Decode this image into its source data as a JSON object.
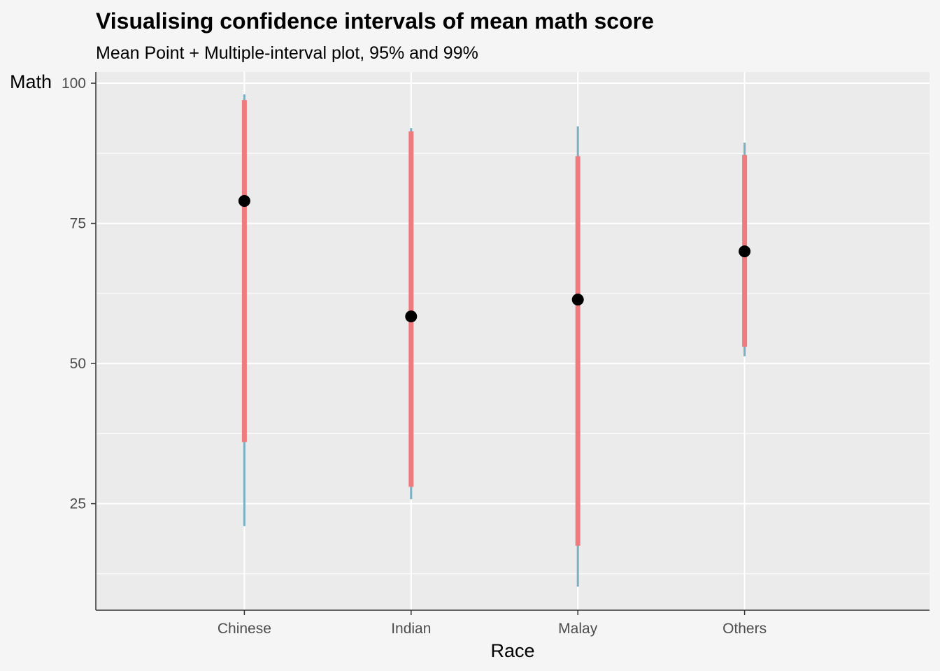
{
  "chart_data": {
    "type": "errorbar",
    "title": "Visualising confidence intervals of mean math score",
    "subtitle": "Mean Point + Multiple-interval plot, 95% and 99%",
    "xlabel": "Race",
    "ylabel": "Math",
    "categories": [
      "Chinese",
      "Indian",
      "Malay",
      "Others"
    ],
    "ylim": [
      6,
      102
    ],
    "y_ticks": [
      25,
      50,
      75,
      100
    ],
    "y_tick_labels": [
      "25",
      "50",
      "75",
      "100"
    ],
    "grid": true,
    "means": [
      79.0,
      58.4,
      61.4,
      70.0
    ],
    "interval_95": [
      [
        36.0,
        97.0
      ],
      [
        28.0,
        91.4
      ],
      [
        17.5,
        87.0
      ],
      [
        53.0,
        87.2
      ]
    ],
    "interval_99": [
      [
        21.0,
        98.0
      ],
      [
        25.8,
        92.0
      ],
      [
        10.2,
        92.3
      ],
      [
        51.3,
        89.4
      ]
    ],
    "colors": {
      "interval_95": "#f07b7f",
      "interval_99": "#7ab0c4",
      "mean_point": "#000000",
      "panel_background": "#ebebeb",
      "page_background": "#f5f5f5",
      "grid": "#ffffff"
    }
  }
}
